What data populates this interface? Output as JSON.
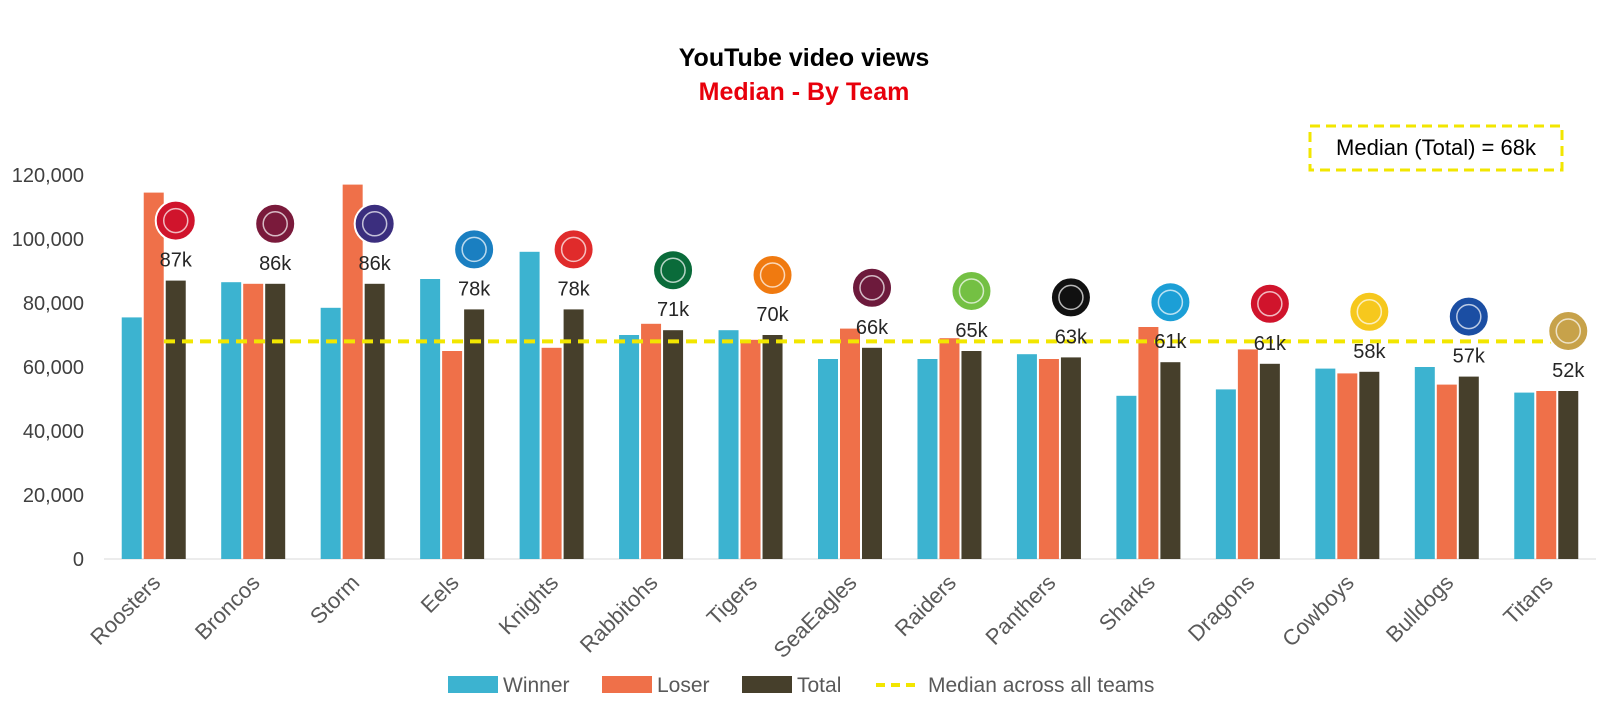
{
  "colors": {
    "winner": "#3cb3d0",
    "loser": "#ef7049",
    "total": "#463f2b",
    "median_line": "#f2e600",
    "subtitle": "#e8000b"
  },
  "median_note": "Median (Total) = 68k",
  "logos": [
    {
      "team": "Roosters",
      "icon": "roosters-logo",
      "color": "#d0142c"
    },
    {
      "team": "Broncos",
      "icon": "broncos-logo",
      "color": "#7a1a3b"
    },
    {
      "team": "Storm",
      "icon": "storm-logo",
      "color": "#3b2e7e"
    },
    {
      "team": "Eels",
      "icon": "eels-logo",
      "color": "#1a7fc1"
    },
    {
      "team": "Knights",
      "icon": "knights-logo",
      "color": "#e02b2b"
    },
    {
      "team": "Rabbitohs",
      "icon": "rabbitohs-logo",
      "color": "#0a6b3a"
    },
    {
      "team": "Tigers",
      "icon": "tigers-logo",
      "color": "#f07a10"
    },
    {
      "team": "SeaEagles",
      "icon": "seaeagles-logo",
      "color": "#6d1a3c"
    },
    {
      "team": "Raiders",
      "icon": "raiders-logo",
      "color": "#74c043"
    },
    {
      "team": "Panthers",
      "icon": "panthers-logo",
      "color": "#111111"
    },
    {
      "team": "Sharks",
      "icon": "sharks-logo",
      "color": "#1c9fd6"
    },
    {
      "team": "Dragons",
      "icon": "dragons-logo",
      "color": "#d0142c"
    },
    {
      "team": "Cowboys",
      "icon": "cowboys-logo",
      "color": "#f6c81d"
    },
    {
      "team": "Bulldogs",
      "icon": "bulldogs-logo",
      "color": "#1b4ea3"
    },
    {
      "team": "Titans",
      "icon": "titans-logo",
      "color": "#c7a24a"
    }
  ],
  "chart_data": {
    "type": "bar",
    "title": "YouTube video views",
    "subtitle": "Median - By Team",
    "xlabel": "",
    "ylabel": "",
    "ylim": [
      0,
      120000
    ],
    "yticks": [
      0,
      20000,
      40000,
      60000,
      80000,
      100000,
      120000
    ],
    "ytick_labels": [
      "0",
      "20,000",
      "40,000",
      "60,000",
      "80,000",
      "100,000",
      "120,000"
    ],
    "grid": false,
    "legend_position": "bottom",
    "categories": [
      "Roosters",
      "Broncos",
      "Storm",
      "Eels",
      "Knights",
      "Rabbitohs",
      "Tigers",
      "SeaEagles",
      "Raiders",
      "Panthers",
      "Sharks",
      "Dragons",
      "Cowboys",
      "Bulldogs",
      "Titans"
    ],
    "series": [
      {
        "name": "Winner",
        "values": [
          75500,
          86500,
          78500,
          87500,
          96000,
          70000,
          71500,
          62500,
          62500,
          64000,
          51000,
          53000,
          59500,
          60000,
          52000
        ]
      },
      {
        "name": "Loser",
        "values": [
          114500,
          86000,
          117000,
          65000,
          66000,
          73500,
          68500,
          72000,
          69000,
          62500,
          72500,
          65500,
          58000,
          54500,
          52500
        ]
      },
      {
        "name": "Total",
        "values": [
          87000,
          86000,
          86000,
          78000,
          78000,
          71500,
          70000,
          66000,
          65000,
          63000,
          61500,
          61000,
          58500,
          57000,
          52500
        ]
      }
    ],
    "total_labels": [
      "87k",
      "86k",
      "86k",
      "78k",
      "78k",
      "71k",
      "70k",
      "66k",
      "65k",
      "63k",
      "61k",
      "61k",
      "58k",
      "57k",
      "52k"
    ],
    "median_line": {
      "name": "Median across all teams",
      "value": 68000
    }
  }
}
